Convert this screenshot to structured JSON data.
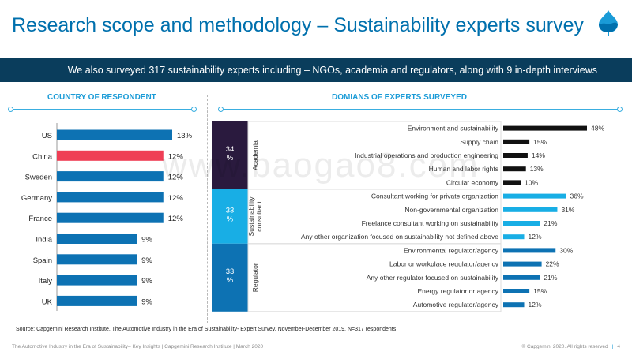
{
  "header": {
    "title": "Research scope and methodology – Sustainability experts survey",
    "banner": "We also surveyed 317 sustainability experts including – NGOs, academia and regulators, along with 9 in-depth interviews"
  },
  "colors": {
    "brand": "#0070ad",
    "banner_bg": "#0a3d5c",
    "accent": "#1a9bd7",
    "highlight": "#ef3e55"
  },
  "watermark": "www.baogao8.com",
  "chart_data": [
    {
      "type": "bar",
      "orientation": "horizontal",
      "title": "COUNTRY OF RESPONDENT",
      "categories": [
        "US",
        "China",
        "Sweden",
        "Germany",
        "France",
        "India",
        "Spain",
        "Italy",
        "UK"
      ],
      "values": [
        13,
        12,
        12,
        12,
        12,
        9,
        9,
        9,
        9
      ],
      "value_labels": [
        "13%",
        "12%",
        "12%",
        "12%",
        "12%",
        "9%",
        "9%",
        "9%",
        "9%"
      ],
      "highlight": "China",
      "xlim": [
        0,
        13
      ]
    },
    {
      "type": "bar",
      "orientation": "horizontal",
      "title": "DOMIANS OF EXPERTS SURVEYED",
      "xlim": [
        0,
        48
      ],
      "groups": [
        {
          "name": "Academia",
          "share": "34\n%",
          "color": "#2a1a3e",
          "bar_color": "#111111",
          "items": [
            {
              "label": "Environment and sustainability",
              "value": 48,
              "value_label": "48%"
            },
            {
              "label": "Supply chain",
              "value": 15,
              "value_label": "15%"
            },
            {
              "label": "Industrial operations and production engineering",
              "value": 14,
              "value_label": "14%"
            },
            {
              "label": "Human and labor rights",
              "value": 13,
              "value_label": "13%"
            },
            {
              "label": "Circular economy",
              "value": 10,
              "value_label": "10%"
            }
          ]
        },
        {
          "name": "Sustainability\nconsultant",
          "share": "33\n%",
          "color": "#18aee5",
          "bar_color": "#18aee5",
          "items": [
            {
              "label": "Consultant working for private organization",
              "value": 36,
              "value_label": "36%"
            },
            {
              "label": "Non-governmental organization",
              "value": 31,
              "value_label": "31%"
            },
            {
              "label": "Freelance consultant working on sustainability",
              "value": 21,
              "value_label": "21%"
            },
            {
              "label": "Any other organization focused on sustainability not defined above",
              "value": 12,
              "value_label": "12%"
            }
          ]
        },
        {
          "name": "Regulator",
          "share": "33\n%",
          "color": "#0d72b3",
          "bar_color": "#0d72b3",
          "items": [
            {
              "label": "Environmental regulator/agency",
              "value": 30,
              "value_label": "30%"
            },
            {
              "label": "Labor or workplace regulator/agency",
              "value": 22,
              "value_label": "22%"
            },
            {
              "label": "Any other regulator focused on sustainability",
              "value": 21,
              "value_label": "21%"
            },
            {
              "label": "Energy regulator or agency",
              "value": 15,
              "value_label": "15%"
            },
            {
              "label": "Automotive regulator/agency",
              "value": 12,
              "value_label": "12%"
            }
          ]
        }
      ]
    }
  ],
  "source": "Source: Capgemini Research Institute, The Automotive Industry in the Era of Sustainability- Expert Survey, November-December 2019, N=317 respondents",
  "footer": {
    "left": "The Automotive Industry in the Era of Sustainability– Key Insights | Capgemini Research Institute | March 2020",
    "copyright": "© Capgemini 2020. All rights reserved",
    "separator": "|",
    "page": "4"
  }
}
